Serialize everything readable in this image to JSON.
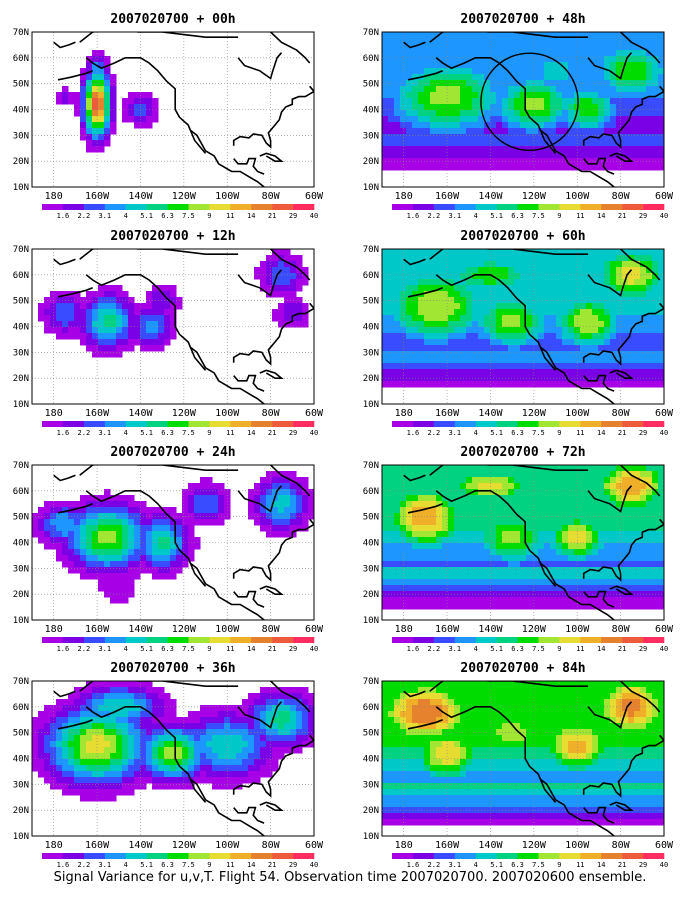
{
  "figure": {
    "caption": "Signal Variance for u,v,T. Flight 54. Observation time 2007020700. 2007020600 ensemble."
  },
  "colorbar": {
    "labels": [
      "1.6",
      "2.2",
      "3.1",
      "4",
      "5.1",
      "6.3",
      "7.5",
      "9",
      "11",
      "14",
      "21",
      "29",
      "40"
    ],
    "colors": [
      "#a800e6",
      "#7a00e6",
      "#3a4cff",
      "#1e96ff",
      "#00c8c8",
      "#00d282",
      "#00dc00",
      "#a0e632",
      "#e6dc32",
      "#f0af28",
      "#e6822d",
      "#f05a3c",
      "#ff2d5f"
    ]
  },
  "map": {
    "lat_labels": [
      "10N",
      "20N",
      "30N",
      "40N",
      "50N",
      "60N",
      "70N"
    ],
    "lon_labels": [
      "180",
      "160W",
      "140W",
      "120W",
      "100W",
      "80W",
      "60W"
    ],
    "lat_range": [
      10,
      70
    ],
    "lon_range": [
      170,
      300
    ]
  },
  "chart_data": [
    {
      "type": "heatmap",
      "title": "2007020700 + 00h",
      "lead_hours": 0,
      "max_level": 13,
      "blobs": [
        [
          -160,
          42,
          6,
          12,
          12.5
        ],
        [
          -160,
          55,
          5,
          6,
          5
        ],
        [
          -140,
          40,
          8,
          6,
          3.5
        ],
        [
          -175,
          45,
          4,
          4,
          2.5
        ]
      ],
      "circle": null
    },
    {
      "type": "heatmap",
      "title": "2007020700 + 12h",
      "lead_hours": 12,
      "max_level": 13,
      "blobs": [
        [
          -155,
          42,
          12,
          10,
          6.5
        ],
        [
          -175,
          45,
          10,
          8,
          4
        ],
        [
          -135,
          40,
          10,
          8,
          4.5
        ],
        [
          -130,
          50,
          8,
          6,
          3
        ],
        [
          -75,
          60,
          10,
          8,
          4
        ],
        [
          -70,
          45,
          8,
          6,
          3
        ]
      ],
      "circle": null
    },
    {
      "type": "heatmap",
      "title": "2007020700 + 24h",
      "lead_hours": 24,
      "max_level": 13,
      "blobs": [
        [
          -155,
          42,
          18,
          12,
          8.5
        ],
        [
          -130,
          40,
          12,
          10,
          6.5
        ],
        [
          -175,
          47,
          12,
          8,
          5
        ],
        [
          -110,
          55,
          10,
          8,
          4
        ],
        [
          -75,
          55,
          12,
          10,
          5.5
        ],
        [
          -150,
          22,
          10,
          6,
          2
        ]
      ],
      "circle": null
    },
    {
      "type": "heatmap",
      "title": "2007020700 + 36h",
      "lead_hours": 36,
      "max_level": 13,
      "blobs": [
        [
          -160,
          45,
          22,
          14,
          9.5
        ],
        [
          -125,
          42,
          15,
          10,
          8.5
        ],
        [
          -100,
          45,
          20,
          12,
          6
        ],
        [
          -75,
          55,
          15,
          10,
          6.5
        ],
        [
          -150,
          60,
          20,
          8,
          6
        ]
      ],
      "circle": null
    },
    {
      "type": "heatmap",
      "title": "2007020700 + 48h",
      "lead_hours": 48,
      "max_level": 13,
      "blobs": [
        [
          -160,
          45,
          30,
          16,
          8.5
        ],
        [
          -120,
          42,
          20,
          12,
          8.5
        ],
        [
          -95,
          40,
          15,
          10,
          8
        ],
        [
          -75,
          55,
          20,
          12,
          8
        ],
        [
          -110,
          55,
          15,
          8,
          6
        ]
      ],
      "base": 4,
      "circle": [
        -122,
        43,
        7
      ]
    },
    {
      "type": "heatmap",
      "title": "2007020700 + 60h",
      "lead_hours": 60,
      "max_level": 13,
      "blobs": [
        [
          -165,
          48,
          28,
          16,
          9
        ],
        [
          -130,
          42,
          20,
          12,
          8.5
        ],
        [
          -95,
          42,
          18,
          12,
          9
        ],
        [
          -75,
          60,
          20,
          12,
          9.5
        ],
        [
          -140,
          60,
          25,
          8,
          8
        ]
      ],
      "base": 5,
      "circle": null
    },
    {
      "type": "heatmap",
      "title": "2007020700 + 72h",
      "lead_hours": 72,
      "max_level": 13,
      "blobs": [
        [
          -170,
          50,
          20,
          14,
          11
        ],
        [
          -130,
          42,
          20,
          12,
          8.5
        ],
        [
          -100,
          42,
          15,
          10,
          10
        ],
        [
          -75,
          62,
          20,
          12,
          11
        ],
        [
          -140,
          62,
          25,
          8,
          9.5
        ]
      ],
      "base": 6,
      "circle": null
    },
    {
      "type": "heatmap",
      "title": "2007020700 + 84h",
      "lead_hours": 84,
      "max_level": 13,
      "blobs": [
        [
          -170,
          58,
          25,
          14,
          12
        ],
        [
          -160,
          42,
          18,
          12,
          10
        ],
        [
          -100,
          45,
          20,
          12,
          10.5
        ],
        [
          -75,
          60,
          20,
          14,
          11.5
        ],
        [
          -130,
          50,
          20,
          10,
          9
        ]
      ],
      "base": 7,
      "circle": null
    }
  ]
}
